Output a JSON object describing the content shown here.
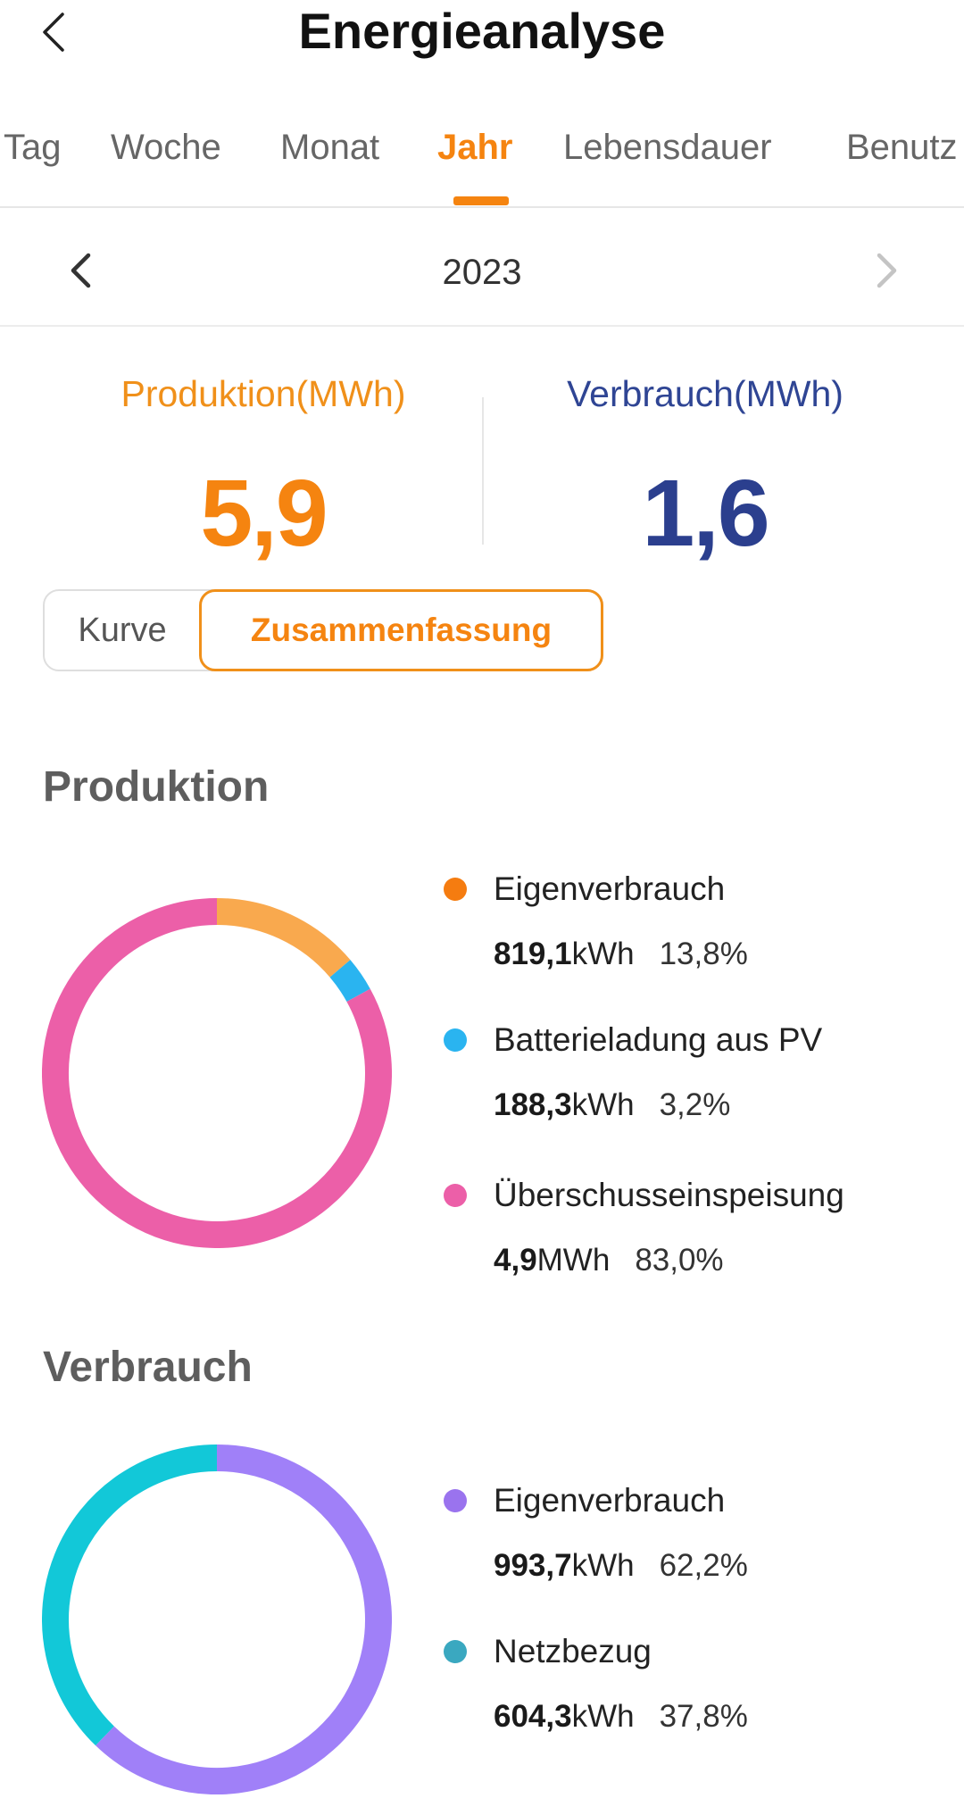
{
  "header": {
    "title": "Energieanalyse"
  },
  "tabs": [
    {
      "label": "Tag",
      "active": false
    },
    {
      "label": "Woche",
      "active": false
    },
    {
      "label": "Monat",
      "active": false
    },
    {
      "label": "Jahr",
      "active": true
    },
    {
      "label": "Lebensdauer",
      "active": false
    },
    {
      "label": "Benutz",
      "active": false
    }
  ],
  "period": {
    "year": "2023"
  },
  "summary": {
    "production_label": "Produktion(MWh)",
    "production_value": "5,9",
    "consumption_label": "Verbrauch(MWh)",
    "consumption_value": "1,6"
  },
  "view_toggle": {
    "curve": "Kurve",
    "summary": "Zusammenfassung",
    "selected": "summary"
  },
  "production": {
    "title": "Produktion",
    "items": [
      {
        "name": "Eigenverbrauch",
        "amount": "819,1",
        "unit": "kWh",
        "percent": "13,8%",
        "share": 13.8,
        "color": "#f9a94e",
        "dot_color": "#f57c10"
      },
      {
        "name": "Batterieladung aus PV",
        "amount": "188,3",
        "unit": "kWh",
        "percent": "3,2%",
        "share": 3.2,
        "color": "#2ab4f0",
        "dot_color": "#2ab4f0"
      },
      {
        "name": "Überschusseinspeisung",
        "amount": "4,9",
        "unit": "MWh",
        "percent": "83,0%",
        "share": 83.0,
        "color": "#ec5fa8",
        "dot_color": "#ec5fa8"
      }
    ]
  },
  "consumption": {
    "title": "Verbrauch",
    "items": [
      {
        "name": "Eigenverbrauch",
        "amount": "993,7",
        "unit": "kWh",
        "percent": "62,2%",
        "share": 62.2,
        "color": "#a080f8",
        "dot_color": "#9a73ee"
      },
      {
        "name": "Netzbezug",
        "amount": "604,3",
        "unit": "kWh",
        "percent": "37,8%",
        "share": 37.8,
        "color": "#12c8d8",
        "dot_color": "#3aa8c0"
      }
    ]
  }
}
